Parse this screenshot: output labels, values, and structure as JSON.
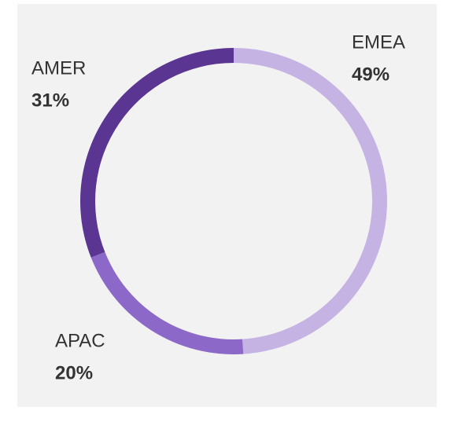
{
  "chart_data": {
    "type": "donut",
    "categories": [
      "EMEA",
      "APAC",
      "AMER"
    ],
    "values": [
      49,
      20,
      31
    ],
    "value_labels": [
      "49%",
      "20%",
      "31%"
    ],
    "colors": [
      "#c5b3e3",
      "#8c68c8",
      "#5a3591"
    ]
  }
}
